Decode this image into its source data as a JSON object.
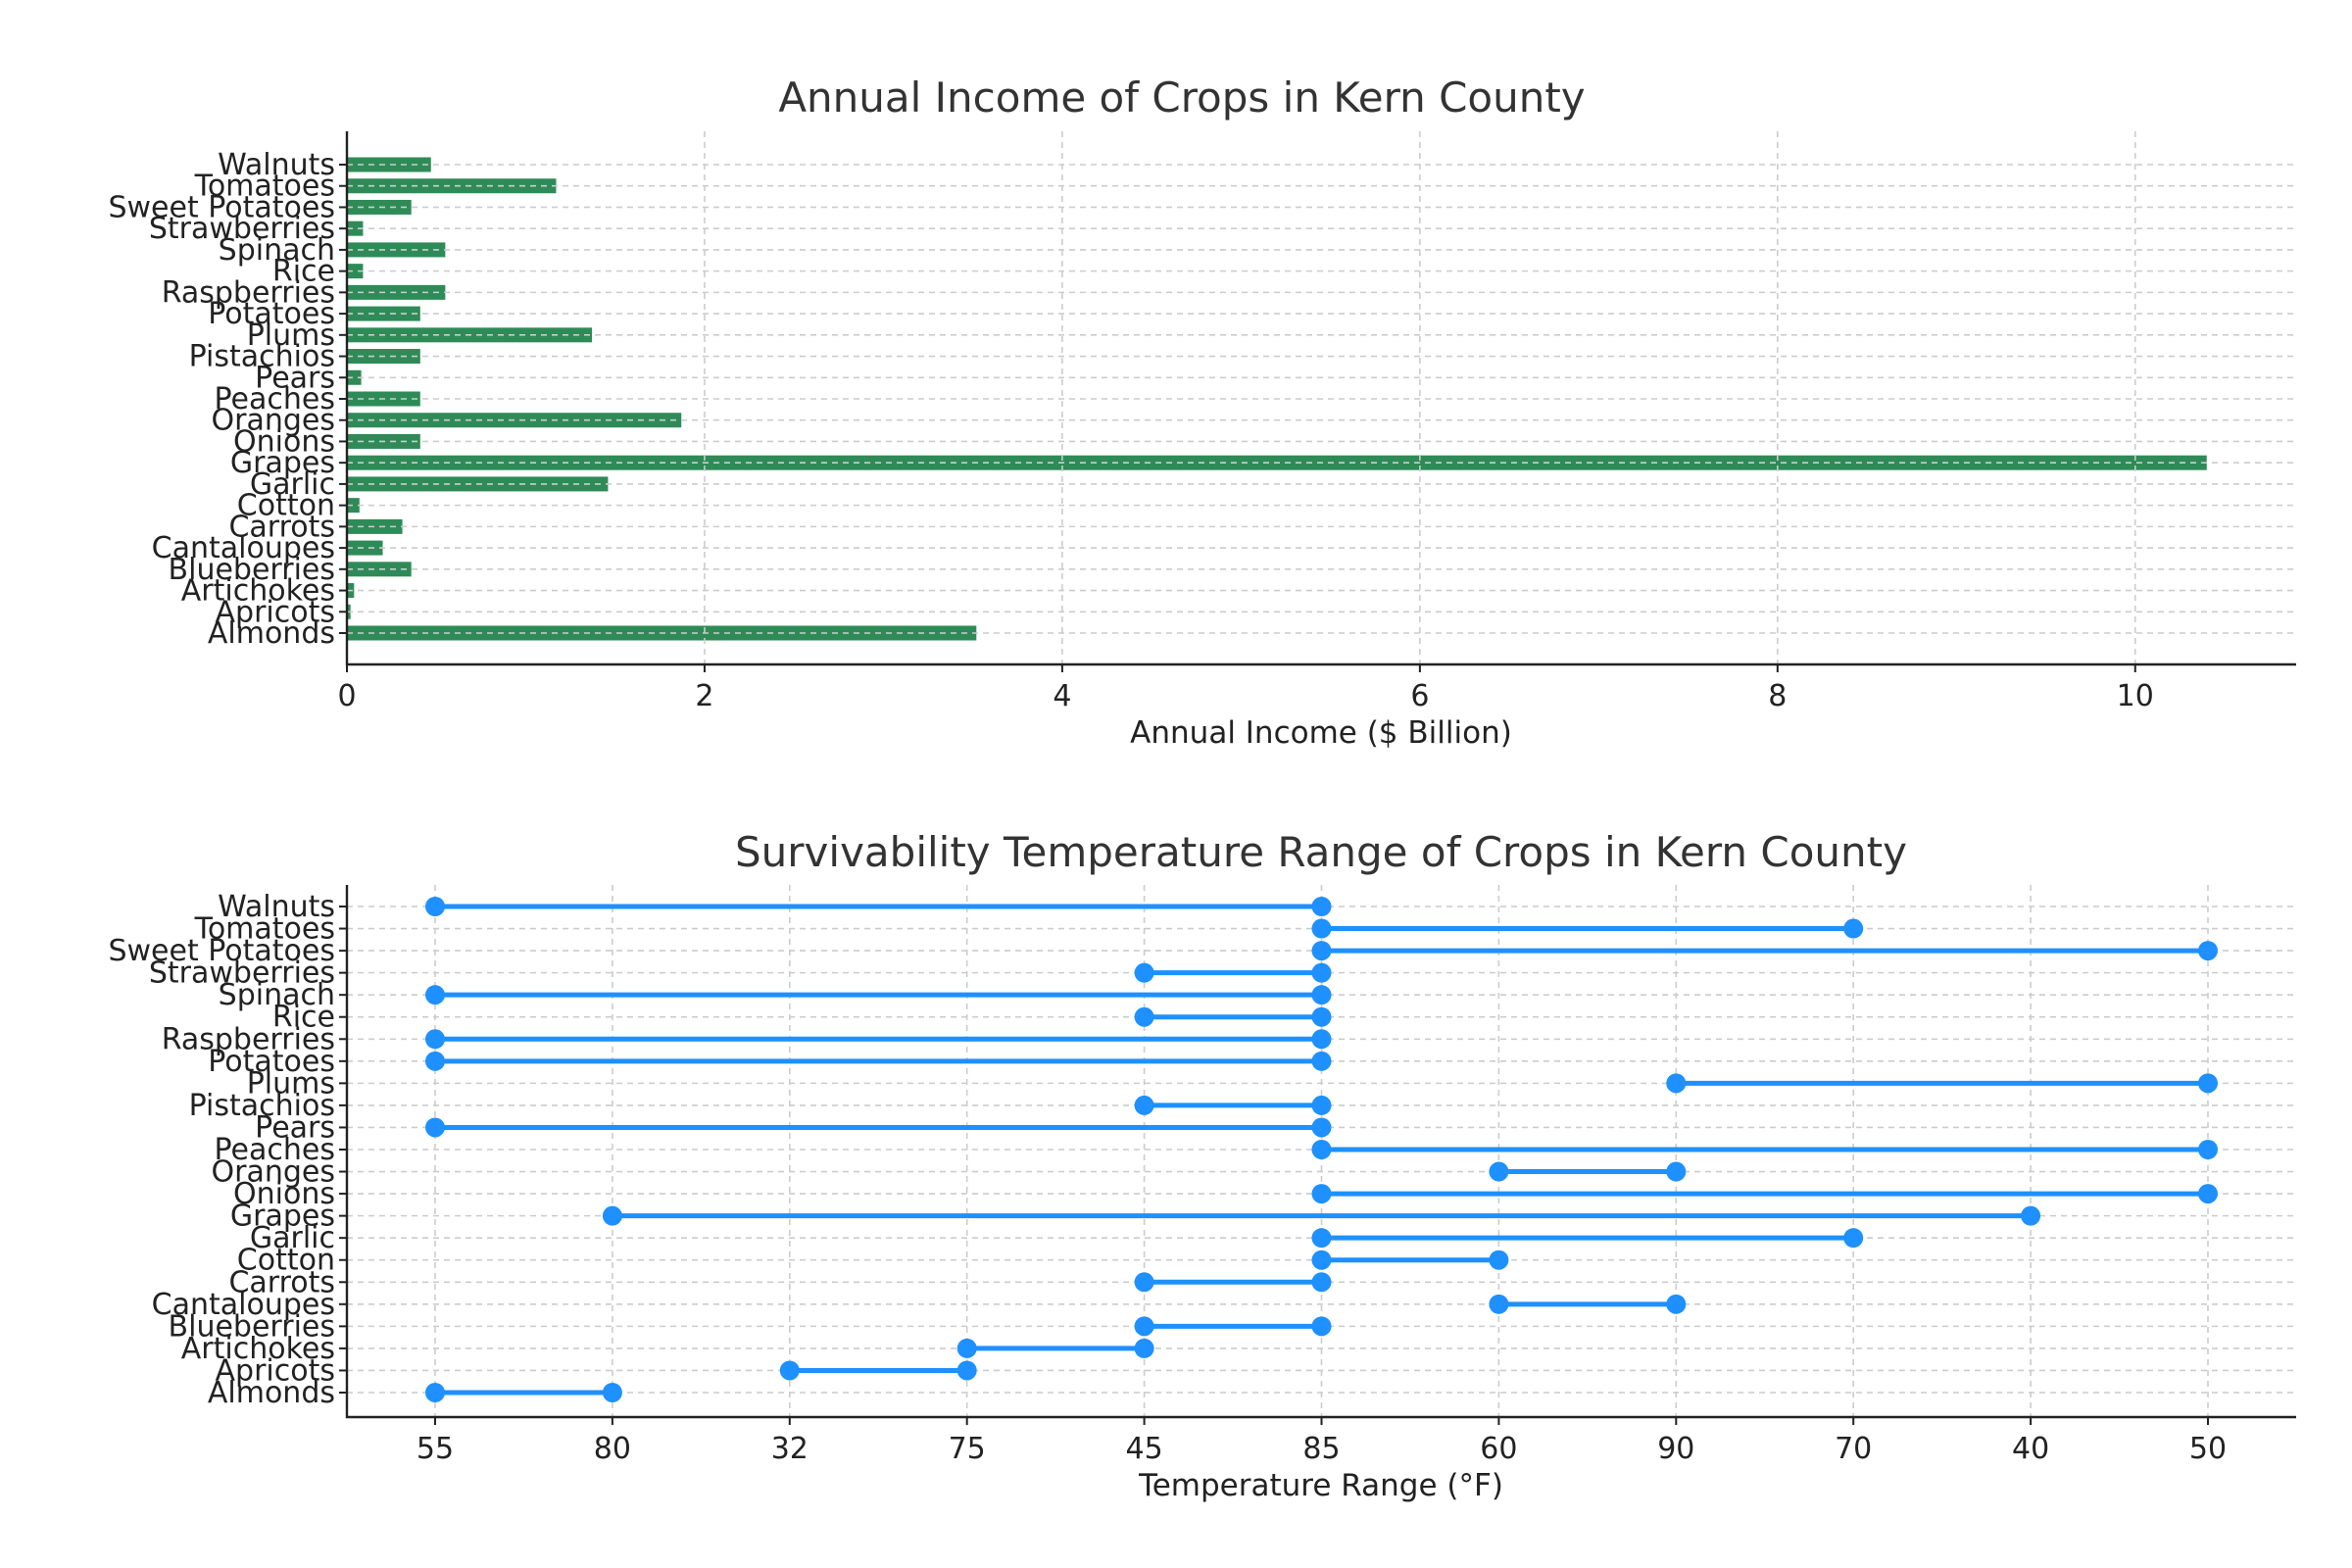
{
  "chart_data": [
    {
      "type": "bar",
      "orientation": "horizontal",
      "title": "Annual Income of Crops in Kern County",
      "xlabel": "Annual Income ($ Billion)",
      "ylabel": "",
      "xlim": [
        0,
        10.9
      ],
      "xticks": [
        0,
        2,
        4,
        6,
        8,
        10
      ],
      "grid": true,
      "color": "#2e8b57",
      "categories": [
        "Almonds",
        "Apricots",
        "Artichokes",
        "Blueberries",
        "Cantaloupes",
        "Carrots",
        "Cotton",
        "Garlic",
        "Grapes",
        "Onions",
        "Oranges",
        "Peaches",
        "Pears",
        "Pistachios",
        "Plums",
        "Potatoes",
        "Raspberries",
        "Rice",
        "Spinach",
        "Strawberries",
        "Sweet Potatoes",
        "Tomatoes",
        "Walnuts"
      ],
      "values": [
        3.52,
        0.02,
        0.04,
        0.36,
        0.2,
        0.31,
        0.07,
        1.46,
        10.4,
        0.41,
        1.87,
        0.41,
        0.08,
        0.41,
        1.37,
        0.41,
        0.55,
        0.09,
        0.55,
        0.09,
        0.36,
        1.17,
        0.47
      ]
    },
    {
      "type": "range",
      "title": "Survivability Temperature Range of Crops in Kern County",
      "xlabel": "Temperature Range (°F)",
      "ylabel": "",
      "grid": true,
      "color": "#1e90ff",
      "x_categories": [
        "55",
        "80",
        "32",
        "75",
        "45",
        "85",
        "60",
        "90",
        "70",
        "40",
        "50"
      ],
      "categories": [
        "Almonds",
        "Apricots",
        "Artichokes",
        "Blueberries",
        "Cantaloupes",
        "Carrots",
        "Cotton",
        "Garlic",
        "Grapes",
        "Onions",
        "Oranges",
        "Peaches",
        "Pears",
        "Pistachios",
        "Plums",
        "Potatoes",
        "Raspberries",
        "Rice",
        "Spinach",
        "Strawberries",
        "Sweet Potatoes",
        "Tomatoes",
        "Walnuts"
      ],
      "ranges": [
        [
          "55",
          "80"
        ],
        [
          "32",
          "75"
        ],
        [
          "75",
          "45"
        ],
        [
          "45",
          "85"
        ],
        [
          "60",
          "90"
        ],
        [
          "45",
          "85"
        ],
        [
          "85",
          "60"
        ],
        [
          "85",
          "70"
        ],
        [
          "80",
          "40"
        ],
        [
          "85",
          "50"
        ],
        [
          "60",
          "90"
        ],
        [
          "85",
          "50"
        ],
        [
          "55",
          "85"
        ],
        [
          "45",
          "85"
        ],
        [
          "90",
          "50"
        ],
        [
          "55",
          "85"
        ],
        [
          "55",
          "85"
        ],
        [
          "45",
          "85"
        ],
        [
          "55",
          "85"
        ],
        [
          "45",
          "85"
        ],
        [
          "85",
          "50"
        ],
        [
          "85",
          "70"
        ],
        [
          "55",
          "85"
        ]
      ]
    }
  ]
}
